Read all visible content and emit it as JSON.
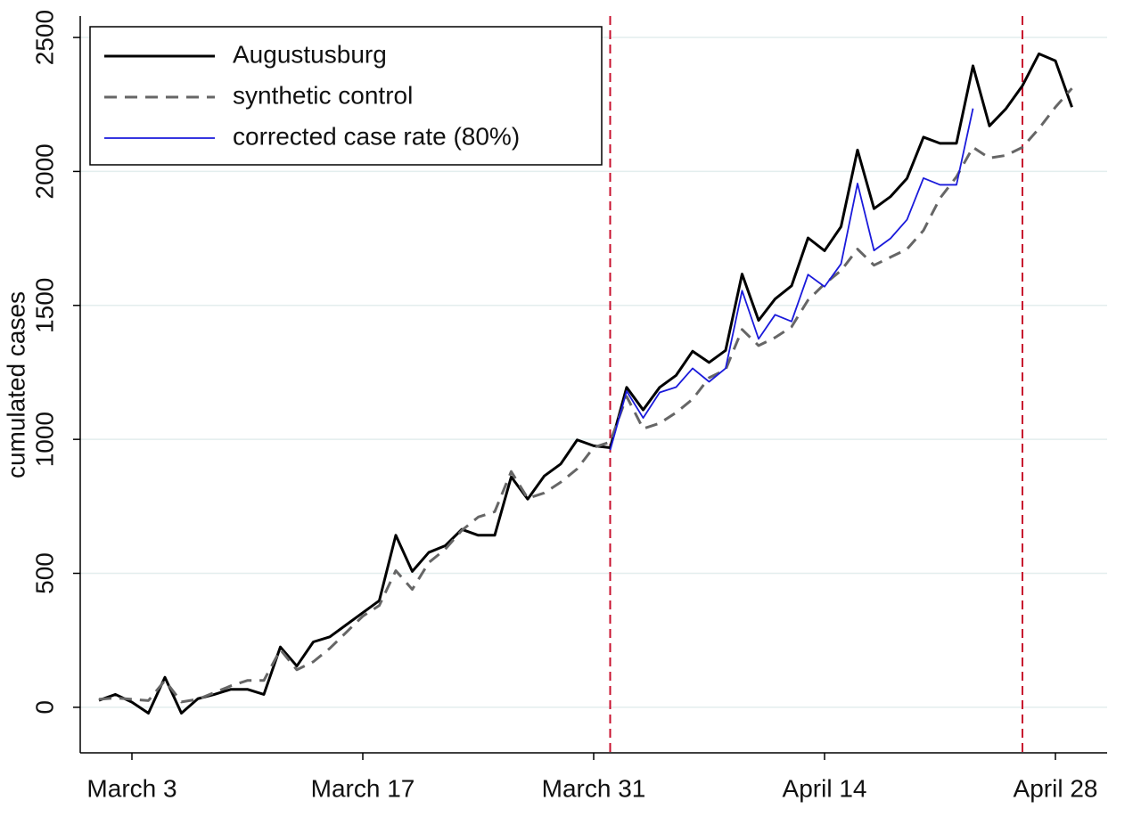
{
  "chart_data": {
    "type": "line",
    "ylabel": "cumulated cases",
    "categories": [
      null,
      null,
      "March 3",
      null,
      null,
      null,
      null,
      null,
      null,
      null,
      null,
      null,
      null,
      null,
      null,
      null,
      "March 17",
      null,
      null,
      null,
      null,
      null,
      null,
      null,
      null,
      null,
      null,
      null,
      null,
      null,
      "March 31",
      null,
      null,
      null,
      null,
      null,
      null,
      null,
      null,
      null,
      null,
      null,
      null,
      null,
      "April 14",
      null,
      null,
      null,
      null,
      null,
      null,
      null,
      null,
      null,
      null,
      null,
      null,
      null,
      "April 28",
      null
    ],
    "series": [
      {
        "name": "Augustusburg",
        "color": "#000000",
        "style": "solid",
        "width": 3,
        "values": [
          26,
          48,
          19,
          -22,
          112,
          -22,
          32,
          48,
          67,
          67,
          48,
          225,
          154,
          244,
          263,
          308,
          353,
          398,
          642,
          507,
          578,
          603,
          664,
          642,
          642,
          860,
          777,
          863,
          908,
          998,
          976,
          969,
          1194,
          1110,
          1194,
          1239,
          1329,
          1287,
          1332,
          1617,
          1444,
          1524,
          1573,
          1752,
          1704,
          1794,
          2080,
          1861,
          1906,
          1974,
          2128,
          2105,
          2105,
          2394,
          2170,
          2234,
          2320,
          2439,
          2413,
          2240
        ]
      },
      {
        "name": "synthetic control",
        "color": "#666666",
        "style": "dashed",
        "width": 3,
        "values": [
          30,
          35,
          30,
          25,
          100,
          20,
          30,
          55,
          80,
          100,
          100,
          215,
          140,
          170,
          220,
          280,
          340,
          380,
          510,
          440,
          540,
          590,
          660,
          710,
          730,
          880,
          780,
          800,
          840,
          890,
          970,
          990,
          1160,
          1040,
          1060,
          1100,
          1150,
          1230,
          1260,
          1410,
          1350,
          1380,
          1420,
          1520,
          1580,
          1630,
          1710,
          1650,
          1680,
          1710,
          1780,
          1900,
          1980,
          2090,
          2050,
          2060,
          2090,
          2160,
          2240,
          2310
        ]
      },
      {
        "name": "corrected case rate (80%)",
        "color": "#1a1adb",
        "style": "solid",
        "width": 1.8,
        "values": [
          null,
          null,
          null,
          null,
          null,
          null,
          null,
          null,
          null,
          null,
          null,
          null,
          null,
          null,
          null,
          null,
          null,
          null,
          null,
          null,
          null,
          null,
          null,
          null,
          null,
          null,
          null,
          null,
          null,
          null,
          null,
          960,
          1180,
          1080,
          1175,
          1195,
          1265,
          1215,
          1265,
          1555,
          1375,
          1465,
          1440,
          1615,
          1570,
          1655,
          1955,
          1705,
          1750,
          1820,
          1975,
          1950,
          1950,
          2235,
          null,
          null,
          null,
          null,
          null,
          null
        ]
      }
    ],
    "vlines": [
      31,
      56
    ],
    "vline_color": "#c8102e",
    "ylim": [
      -170,
      2580
    ],
    "yticks": [
      0,
      500,
      1000,
      1500,
      2000,
      2500
    ],
    "grid": true,
    "legend": "upper left"
  }
}
